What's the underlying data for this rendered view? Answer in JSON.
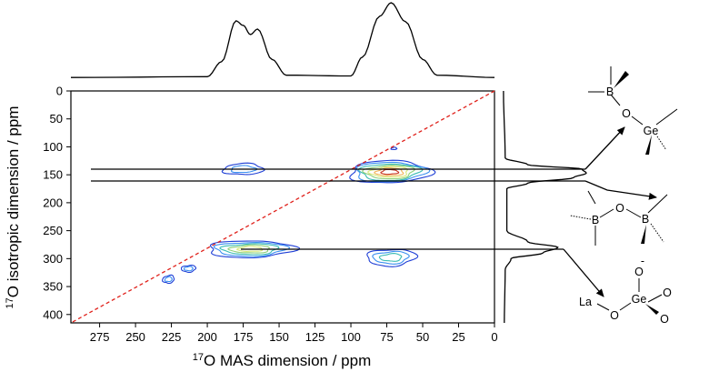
{
  "chart_data": {
    "type": "heatmap",
    "title": "",
    "xlabel": {
      "sup": "17",
      "text": "O MAS dimension  / ppm"
    },
    "ylabel": {
      "sup": "17",
      "text": "O isotropic dimension / ppm"
    },
    "xlim": [
      295,
      0
    ],
    "ylim": [
      0,
      415
    ],
    "xticks": [
      275,
      250,
      225,
      200,
      175,
      150,
      125,
      100,
      75,
      50,
      25,
      0
    ],
    "yticks": [
      0,
      50,
      100,
      150,
      200,
      250,
      300,
      350,
      400
    ],
    "diagonal": {
      "from": [
        0,
        0
      ],
      "to": [
        295,
        415
      ],
      "color": "#e0211b",
      "style": "dashed"
    },
    "peaks": [
      {
        "x": 175,
        "y": 140,
        "wx": 14,
        "wy": 10,
        "intensity": 0.3
      },
      {
        "x": 73,
        "y": 145,
        "wx": 28,
        "wy": 20,
        "intensity": 1.0
      },
      {
        "x": 170,
        "y": 283,
        "wx": 30,
        "wy": 15,
        "intensity": 0.72
      },
      {
        "x": 72,
        "y": 298,
        "wx": 17,
        "wy": 15,
        "intensity": 0.42
      },
      {
        "x": 213,
        "y": 318,
        "wx": 5,
        "wy": 6,
        "intensity": 0.25
      },
      {
        "x": 227,
        "y": 337,
        "wx": 4,
        "wy": 7,
        "intensity": 0.22
      },
      {
        "x": 70,
        "y": 103,
        "wx": 2,
        "wy": 2,
        "intensity": 0.15
      }
    ],
    "contour_colors": [
      "#1f3fd6",
      "#3a8ff0",
      "#3bbcb3",
      "#8fd07a",
      "#d7e87a",
      "#f2b356",
      "#c8331f"
    ],
    "mas_projection": [
      [
        295,
        0.01
      ],
      [
        200,
        0.02
      ],
      [
        190,
        0.22
      ],
      [
        180,
        0.76
      ],
      [
        175,
        0.7
      ],
      [
        170,
        0.58
      ],
      [
        165,
        0.65
      ],
      [
        155,
        0.25
      ],
      [
        145,
        0.04
      ],
      [
        100,
        0.03
      ],
      [
        92,
        0.28
      ],
      [
        80,
        0.82
      ],
      [
        72,
        1.0
      ],
      [
        62,
        0.75
      ],
      [
        50,
        0.25
      ],
      [
        40,
        0.04
      ],
      [
        0,
        0.01
      ]
    ],
    "iso_projection": [
      [
        0,
        0.01
      ],
      [
        120,
        0.03
      ],
      [
        132,
        0.3
      ],
      [
        140,
        0.95
      ],
      [
        147,
        1.0
      ],
      [
        155,
        0.85
      ],
      [
        165,
        0.3
      ],
      [
        175,
        0.05
      ],
      [
        250,
        0.05
      ],
      [
        270,
        0.3
      ],
      [
        280,
        0.66
      ],
      [
        290,
        0.48
      ],
      [
        300,
        0.1
      ],
      [
        320,
        0.03
      ],
      [
        415,
        0.02
      ]
    ]
  },
  "structures": [
    {
      "id": "b-o-ge",
      "atoms": [
        "B",
        "O",
        "Ge"
      ],
      "links_to_peak_y": [
        140,
        160
      ]
    },
    {
      "id": "b-o-b",
      "atoms": [
        "B",
        "O",
        "B"
      ],
      "links_to_peak_y": [
        160
      ]
    },
    {
      "id": "la-o-geo3",
      "atoms": [
        "La",
        "O",
        "Ge",
        "O",
        "O",
        "O"
      ],
      "charge": "-",
      "links_to_peak_y": [
        283
      ]
    }
  ]
}
